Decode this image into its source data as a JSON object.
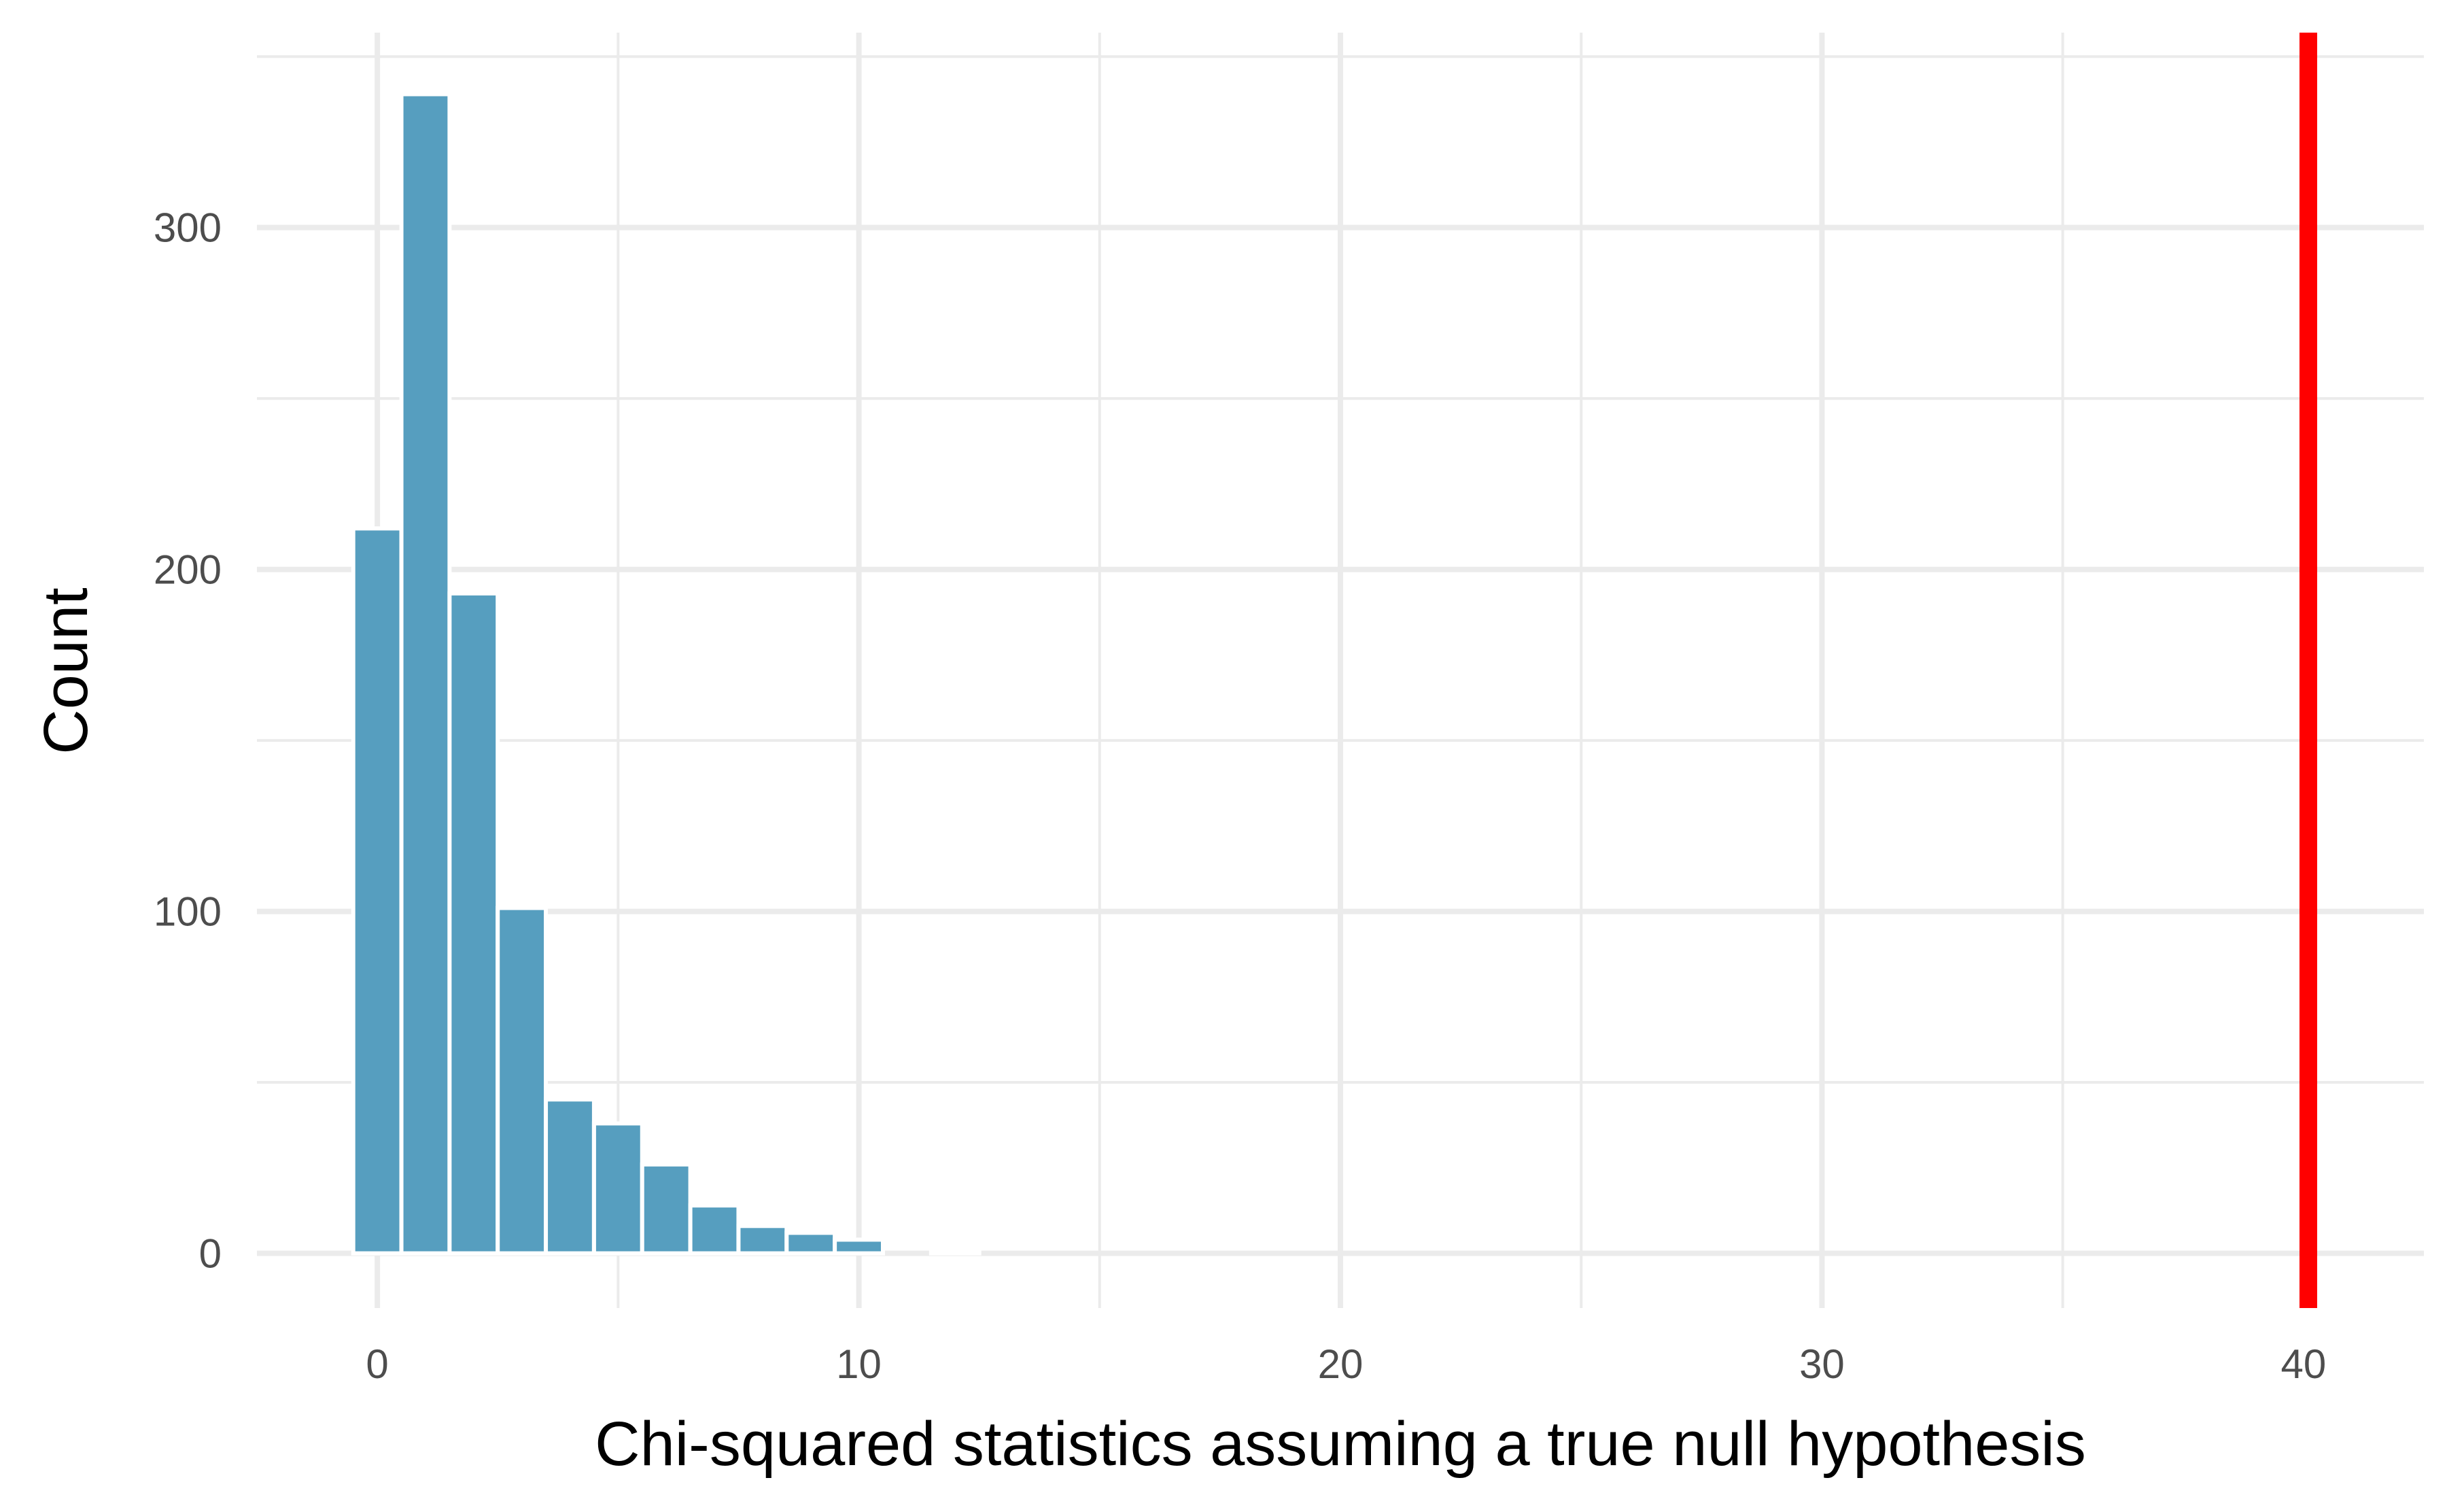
{
  "chart_data": {
    "type": "bar",
    "xlabel": "Chi-squared statistics assuming a true null hypothesis",
    "ylabel": "Count",
    "xlim": [
      -2.5,
      42.5
    ],
    "ylim": [
      -16,
      357
    ],
    "x_ticks": [
      0,
      10,
      20,
      30,
      40
    ],
    "y_ticks": [
      0,
      100,
      200,
      300
    ],
    "grid": true,
    "bin_width": 1,
    "bins": [
      {
        "x": 0,
        "count": 212
      },
      {
        "x": 1,
        "count": 339
      },
      {
        "x": 2,
        "count": 193
      },
      {
        "x": 3,
        "count": 101
      },
      {
        "x": 4,
        "count": 45
      },
      {
        "x": 5,
        "count": 38
      },
      {
        "x": 6,
        "count": 26
      },
      {
        "x": 7,
        "count": 14
      },
      {
        "x": 8,
        "count": 8
      },
      {
        "x": 9,
        "count": 6
      },
      {
        "x": 10,
        "count": 4
      },
      {
        "x": 11,
        "count": 0
      },
      {
        "x": 12,
        "count": 1
      }
    ],
    "observed_statistic": 40.1,
    "colors": {
      "bar": "#569ebf",
      "observed_line": "#ff0000",
      "grid": "#ebebeb"
    }
  }
}
